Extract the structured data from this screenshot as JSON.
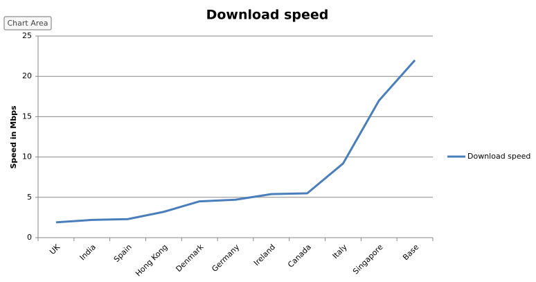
{
  "tooltip": "Chart Area",
  "chart_data": {
    "type": "line",
    "title": "Download speed",
    "y_label": "Speed in Mbps",
    "categories": [
      "UK",
      "India",
      "Spain",
      "Hong Kong",
      "Denmark",
      "Germany",
      "Ireland",
      "Canada",
      "Italy",
      "Singapore",
      "Base"
    ],
    "series": [
      {
        "name": "Download speed",
        "color": "#4a7ebb",
        "values": [
          1.9,
          2.2,
          2.3,
          3.2,
          4.5,
          4.7,
          5.4,
          5.5,
          9.2,
          17,
          22
        ]
      }
    ],
    "ylim": [
      0,
      25
    ],
    "yticks": [
      0,
      5,
      10,
      15,
      20,
      25
    ],
    "grid": true,
    "legend": "right"
  }
}
